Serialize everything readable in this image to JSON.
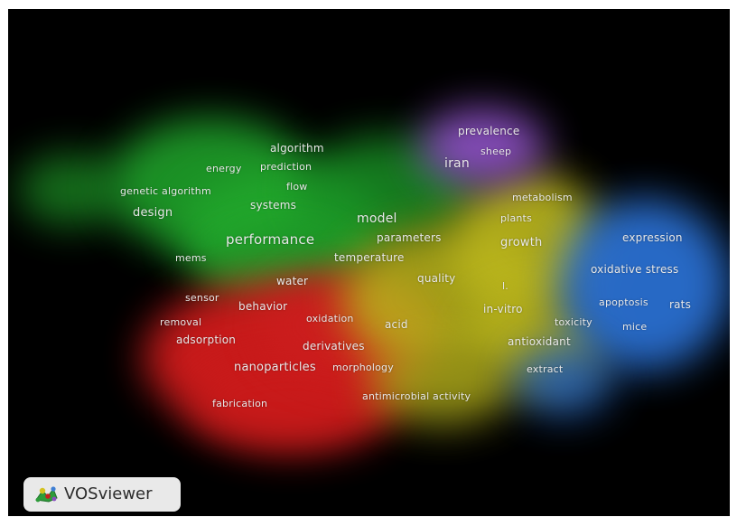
{
  "app": {
    "logo_text": "VOSviewer"
  },
  "clusters": [
    {
      "name": "green",
      "color": "#1fa02a"
    },
    {
      "name": "red",
      "color": "#d21c1c"
    },
    {
      "name": "yellow",
      "color": "#b9b51c"
    },
    {
      "name": "blue",
      "color": "#2a6fd0"
    },
    {
      "name": "purple",
      "color": "#8a4fc0"
    }
  ],
  "terms": {
    "prevalence": "prevalence",
    "sheep": "sheep",
    "iran": "iran",
    "algorithm": "algorithm",
    "energy": "energy",
    "prediction": "prediction",
    "flow": "flow",
    "genetic_algorithm": "genetic algorithm",
    "systems": "systems",
    "design": "design",
    "metabolism": "metabolism",
    "model": "model",
    "plants": "plants",
    "performance": "performance",
    "parameters": "parameters",
    "growth": "growth",
    "expression": "expression",
    "mems": "mems",
    "temperature": "temperature",
    "oxidative_stress": "oxidative stress",
    "water": "water",
    "quality": "quality",
    "l": "l.",
    "sensor": "sensor",
    "behavior": "behavior",
    "apoptosis": "apoptosis",
    "rats": "rats",
    "in_vitro": "in-vitro",
    "oxidation": "oxidation",
    "removal": "removal",
    "acid": "acid",
    "toxicity": "toxicity",
    "mice": "mice",
    "adsorption": "adsorption",
    "antioxidant": "antioxidant",
    "derivatives": "derivatives",
    "nanoparticles": "nanoparticles",
    "morphology": "morphology",
    "extract": "extract",
    "antimicrobial_activity": "antimicrobial activity",
    "fabrication": "fabrication"
  }
}
